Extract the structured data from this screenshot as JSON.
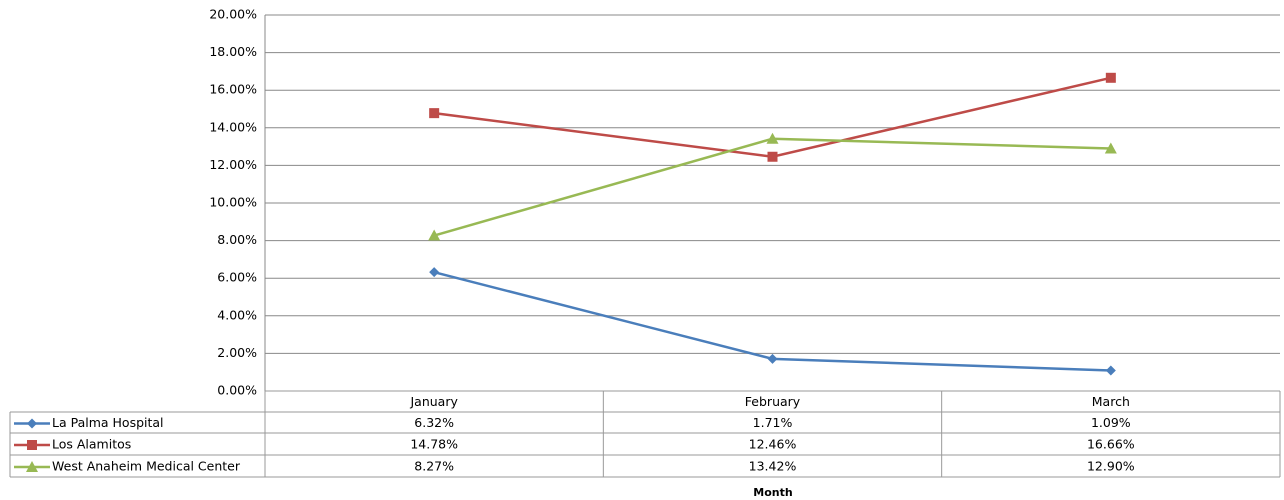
{
  "chart_data": {
    "type": "line",
    "x_label": "Month",
    "categories": [
      "January",
      "February",
      "March"
    ],
    "series": [
      {
        "name": "La Palma Hospital",
        "color": "#4a7ebb",
        "marker": "diamond",
        "values": [
          6.32,
          1.71,
          1.09
        ],
        "value_labels": [
          "6.32%",
          "1.71%",
          "1.09%"
        ]
      },
      {
        "name": "Los Alamitos",
        "color": "#be4b48",
        "marker": "square",
        "values": [
          14.78,
          12.46,
          16.66
        ],
        "value_labels": [
          "14.78%",
          "12.46%",
          "16.66%"
        ]
      },
      {
        "name": "West Anaheim Medical Center",
        "color": "#98b954",
        "marker": "triangle",
        "values": [
          8.27,
          13.42,
          12.9
        ],
        "value_labels": [
          "8.27%",
          "13.42%",
          "12.90%"
        ]
      }
    ],
    "ylim": [
      0,
      20
    ],
    "yticks": [
      {
        "value": 0,
        "label": "0.00%"
      },
      {
        "value": 2,
        "label": "2.00%"
      },
      {
        "value": 4,
        "label": "4.00%"
      },
      {
        "value": 6,
        "label": "6.00%"
      },
      {
        "value": 8,
        "label": "8.00%"
      },
      {
        "value": 10,
        "label": "10.00%"
      },
      {
        "value": 12,
        "label": "12.00%"
      },
      {
        "value": 14,
        "label": "14.00%"
      },
      {
        "value": 16,
        "label": "16.00%"
      },
      {
        "value": 18,
        "label": "18.00%"
      },
      {
        "value": 20,
        "label": "20.00%"
      }
    ],
    "grid": true
  }
}
